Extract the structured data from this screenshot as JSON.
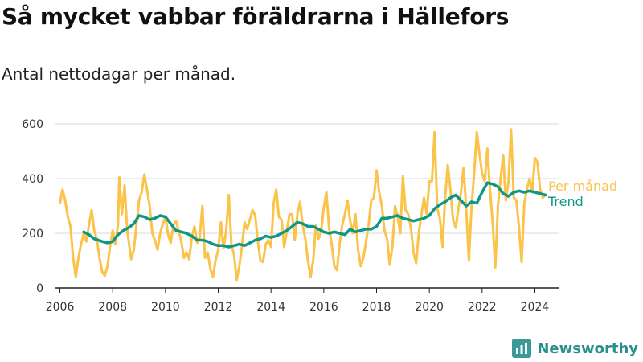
{
  "header": {
    "title": "Så mycket vabbar föräldrarna i Hällefors",
    "subtitle": "Antal nettodagar per månad."
  },
  "brand": {
    "name": "Newsworthy",
    "icon": "bar-chart-logo-icon"
  },
  "colors": {
    "monthly": "#fbc34a",
    "trend": "#0f9786",
    "grid": "#d9d9d9",
    "axis": "#222222",
    "brand": "#2a8f8f"
  },
  "chart_data": {
    "type": "line",
    "title": "Så mycket vabbar föräldrarna i Hällefors",
    "subtitle": "Antal nettodagar per månad.",
    "xlabel": "",
    "ylabel": "",
    "xlim": [
      2005.8,
      2024.9
    ],
    "ylim": [
      0,
      600
    ],
    "x_ticks": [
      2006,
      2008,
      2010,
      2012,
      2014,
      2016,
      2018,
      2020,
      2022,
      2024
    ],
    "y_ticks": [
      0,
      200,
      400,
      600
    ],
    "grid": "horizontal",
    "legend": "direct labels at line ends, right",
    "series": [
      {
        "name": "Per månad",
        "points": [
          [
            2006.0,
            310
          ],
          [
            2006.1,
            360
          ],
          [
            2006.2,
            320
          ],
          [
            2006.3,
            260
          ],
          [
            2006.4,
            225
          ],
          [
            2006.5,
            110
          ],
          [
            2006.6,
            40
          ],
          [
            2006.7,
            110
          ],
          [
            2006.8,
            160
          ],
          [
            2006.9,
            200
          ],
          [
            2007.0,
            170
          ],
          [
            2007.1,
            230
          ],
          [
            2007.2,
            285
          ],
          [
            2007.3,
            210
          ],
          [
            2007.4,
            180
          ],
          [
            2007.5,
            110
          ],
          [
            2007.6,
            60
          ],
          [
            2007.7,
            45
          ],
          [
            2007.8,
            80
          ],
          [
            2007.9,
            150
          ],
          [
            2008.0,
            210
          ],
          [
            2008.1,
            160
          ],
          [
            2008.2,
            230
          ],
          [
            2008.25,
            405
          ],
          [
            2008.35,
            270
          ],
          [
            2008.45,
            375
          ],
          [
            2008.55,
            210
          ],
          [
            2008.7,
            105
          ],
          [
            2008.8,
            140
          ],
          [
            2008.9,
            230
          ],
          [
            2009.0,
            320
          ],
          [
            2009.1,
            350
          ],
          [
            2009.2,
            415
          ],
          [
            2009.3,
            360
          ],
          [
            2009.4,
            300
          ],
          [
            2009.5,
            200
          ],
          [
            2009.6,
            175
          ],
          [
            2009.7,
            140
          ],
          [
            2009.8,
            200
          ],
          [
            2009.9,
            235
          ],
          [
            2010.0,
            260
          ],
          [
            2010.1,
            195
          ],
          [
            2010.2,
            165
          ],
          [
            2010.3,
            230
          ],
          [
            2010.4,
            245
          ],
          [
            2010.5,
            210
          ],
          [
            2010.6,
            170
          ],
          [
            2010.7,
            110
          ],
          [
            2010.8,
            130
          ],
          [
            2010.9,
            105
          ],
          [
            2011.0,
            185
          ],
          [
            2011.1,
            225
          ],
          [
            2011.2,
            165
          ],
          [
            2011.3,
            185
          ],
          [
            2011.4,
            300
          ],
          [
            2011.5,
            110
          ],
          [
            2011.6,
            130
          ],
          [
            2011.7,
            70
          ],
          [
            2011.8,
            40
          ],
          [
            2011.9,
            100
          ],
          [
            2012.0,
            140
          ],
          [
            2012.1,
            240
          ],
          [
            2012.2,
            145
          ],
          [
            2012.3,
            210
          ],
          [
            2012.4,
            340
          ],
          [
            2012.5,
            160
          ],
          [
            2012.6,
            120
          ],
          [
            2012.7,
            30
          ],
          [
            2012.8,
            80
          ],
          [
            2012.9,
            155
          ],
          [
            2013.0,
            240
          ],
          [
            2013.1,
            215
          ],
          [
            2013.2,
            250
          ],
          [
            2013.3,
            285
          ],
          [
            2013.4,
            265
          ],
          [
            2013.5,
            170
          ],
          [
            2013.6,
            100
          ],
          [
            2013.7,
            95
          ],
          [
            2013.8,
            160
          ],
          [
            2013.9,
            175
          ],
          [
            2014.0,
            150
          ],
          [
            2014.1,
            310
          ],
          [
            2014.2,
            360
          ],
          [
            2014.3,
            260
          ],
          [
            2014.4,
            250
          ],
          [
            2014.5,
            150
          ],
          [
            2014.6,
            210
          ],
          [
            2014.7,
            270
          ],
          [
            2014.8,
            270
          ],
          [
            2014.9,
            175
          ],
          [
            2015.0,
            270
          ],
          [
            2015.1,
            315
          ],
          [
            2015.2,
            230
          ],
          [
            2015.3,
            180
          ],
          [
            2015.4,
            100
          ],
          [
            2015.5,
            40
          ],
          [
            2015.6,
            100
          ],
          [
            2015.7,
            230
          ],
          [
            2015.8,
            180
          ],
          [
            2015.9,
            205
          ],
          [
            2016.0,
            295
          ],
          [
            2016.1,
            350
          ],
          [
            2016.2,
            220
          ],
          [
            2016.3,
            160
          ],
          [
            2016.4,
            80
          ],
          [
            2016.5,
            65
          ],
          [
            2016.6,
            160
          ],
          [
            2016.7,
            230
          ],
          [
            2016.8,
            270
          ],
          [
            2016.9,
            320
          ],
          [
            2017.0,
            245
          ],
          [
            2017.1,
            200
          ],
          [
            2017.2,
            270
          ],
          [
            2017.3,
            140
          ],
          [
            2017.4,
            80
          ],
          [
            2017.5,
            110
          ],
          [
            2017.6,
            170
          ],
          [
            2017.7,
            230
          ],
          [
            2017.8,
            320
          ],
          [
            2017.9,
            330
          ],
          [
            2018.0,
            430
          ],
          [
            2018.1,
            350
          ],
          [
            2018.2,
            300
          ],
          [
            2018.3,
            210
          ],
          [
            2018.4,
            180
          ],
          [
            2018.5,
            85
          ],
          [
            2018.6,
            150
          ],
          [
            2018.7,
            300
          ],
          [
            2018.8,
            260
          ],
          [
            2018.9,
            200
          ],
          [
            2019.0,
            410
          ],
          [
            2019.1,
            285
          ],
          [
            2019.2,
            270
          ],
          [
            2019.3,
            220
          ],
          [
            2019.4,
            130
          ],
          [
            2019.5,
            90
          ],
          [
            2019.6,
            200
          ],
          [
            2019.7,
            270
          ],
          [
            2019.8,
            330
          ],
          [
            2019.9,
            270
          ],
          [
            2020.0,
            390
          ],
          [
            2020.1,
            390
          ],
          [
            2020.2,
            570
          ],
          [
            2020.3,
            290
          ],
          [
            2020.4,
            255
          ],
          [
            2020.5,
            150
          ],
          [
            2020.6,
            330
          ],
          [
            2020.7,
            450
          ],
          [
            2020.8,
            360
          ],
          [
            2020.9,
            250
          ],
          [
            2021.0,
            220
          ],
          [
            2021.1,
            290
          ],
          [
            2021.2,
            350
          ],
          [
            2021.3,
            440
          ],
          [
            2021.4,
            285
          ],
          [
            2021.5,
            100
          ],
          [
            2021.6,
            300
          ],
          [
            2021.7,
            420
          ],
          [
            2021.8,
            570
          ],
          [
            2021.9,
            490
          ],
          [
            2022.0,
            420
          ],
          [
            2022.1,
            390
          ],
          [
            2022.2,
            510
          ],
          [
            2022.3,
            360
          ],
          [
            2022.4,
            240
          ],
          [
            2022.5,
            75
          ],
          [
            2022.6,
            300
          ],
          [
            2022.7,
            400
          ],
          [
            2022.8,
            485
          ],
          [
            2022.9,
            320
          ],
          [
            2023.0,
            390
          ],
          [
            2023.1,
            580
          ],
          [
            2023.2,
            330
          ],
          [
            2023.3,
            320
          ],
          [
            2023.4,
            220
          ],
          [
            2023.5,
            95
          ],
          [
            2023.6,
            310
          ],
          [
            2023.7,
            360
          ],
          [
            2023.8,
            400
          ],
          [
            2023.9,
            350
          ],
          [
            2024.0,
            475
          ],
          [
            2024.1,
            460
          ],
          [
            2024.2,
            360
          ],
          [
            2024.3,
            330
          ],
          [
            2024.4,
            340
          ]
        ]
      },
      {
        "name": "Trend",
        "points": [
          [
            2006.9,
            205
          ],
          [
            2007.1,
            195
          ],
          [
            2007.3,
            180
          ],
          [
            2007.6,
            170
          ],
          [
            2007.8,
            165
          ],
          [
            2008.0,
            170
          ],
          [
            2008.2,
            195
          ],
          [
            2008.4,
            210
          ],
          [
            2008.6,
            220
          ],
          [
            2008.8,
            235
          ],
          [
            2009.0,
            265
          ],
          [
            2009.2,
            260
          ],
          [
            2009.4,
            250
          ],
          [
            2009.6,
            255
          ],
          [
            2009.8,
            265
          ],
          [
            2010.0,
            260
          ],
          [
            2010.2,
            235
          ],
          [
            2010.4,
            210
          ],
          [
            2010.6,
            205
          ],
          [
            2010.8,
            200
          ],
          [
            2011.0,
            190
          ],
          [
            2011.2,
            175
          ],
          [
            2011.4,
            175
          ],
          [
            2011.6,
            170
          ],
          [
            2011.8,
            160
          ],
          [
            2012.0,
            155
          ],
          [
            2012.2,
            155
          ],
          [
            2012.4,
            150
          ],
          [
            2012.6,
            155
          ],
          [
            2012.8,
            160
          ],
          [
            2013.0,
            155
          ],
          [
            2013.2,
            165
          ],
          [
            2013.4,
            175
          ],
          [
            2013.6,
            180
          ],
          [
            2013.8,
            190
          ],
          [
            2014.0,
            185
          ],
          [
            2014.2,
            190
          ],
          [
            2014.4,
            200
          ],
          [
            2014.6,
            210
          ],
          [
            2014.8,
            225
          ],
          [
            2015.0,
            240
          ],
          [
            2015.2,
            235
          ],
          [
            2015.4,
            225
          ],
          [
            2015.6,
            225
          ],
          [
            2015.8,
            215
          ],
          [
            2016.0,
            205
          ],
          [
            2016.2,
            200
          ],
          [
            2016.4,
            205
          ],
          [
            2016.6,
            200
          ],
          [
            2016.8,
            195
          ],
          [
            2017.0,
            215
          ],
          [
            2017.2,
            205
          ],
          [
            2017.4,
            210
          ],
          [
            2017.6,
            215
          ],
          [
            2017.8,
            215
          ],
          [
            2018.0,
            225
          ],
          [
            2018.2,
            255
          ],
          [
            2018.4,
            255
          ],
          [
            2018.6,
            260
          ],
          [
            2018.8,
            265
          ],
          [
            2019.0,
            255
          ],
          [
            2019.2,
            250
          ],
          [
            2019.4,
            245
          ],
          [
            2019.6,
            250
          ],
          [
            2019.8,
            255
          ],
          [
            2020.0,
            265
          ],
          [
            2020.2,
            290
          ],
          [
            2020.4,
            305
          ],
          [
            2020.6,
            315
          ],
          [
            2020.8,
            330
          ],
          [
            2021.0,
            340
          ],
          [
            2021.2,
            320
          ],
          [
            2021.4,
            300
          ],
          [
            2021.6,
            315
          ],
          [
            2021.8,
            310
          ],
          [
            2022.0,
            350
          ],
          [
            2022.2,
            385
          ],
          [
            2022.4,
            380
          ],
          [
            2022.6,
            370
          ],
          [
            2022.8,
            345
          ],
          [
            2023.0,
            335
          ],
          [
            2023.2,
            350
          ],
          [
            2023.4,
            355
          ],
          [
            2023.6,
            350
          ],
          [
            2023.8,
            355
          ],
          [
            2024.0,
            350
          ],
          [
            2024.2,
            345
          ],
          [
            2024.4,
            340
          ]
        ]
      }
    ]
  }
}
